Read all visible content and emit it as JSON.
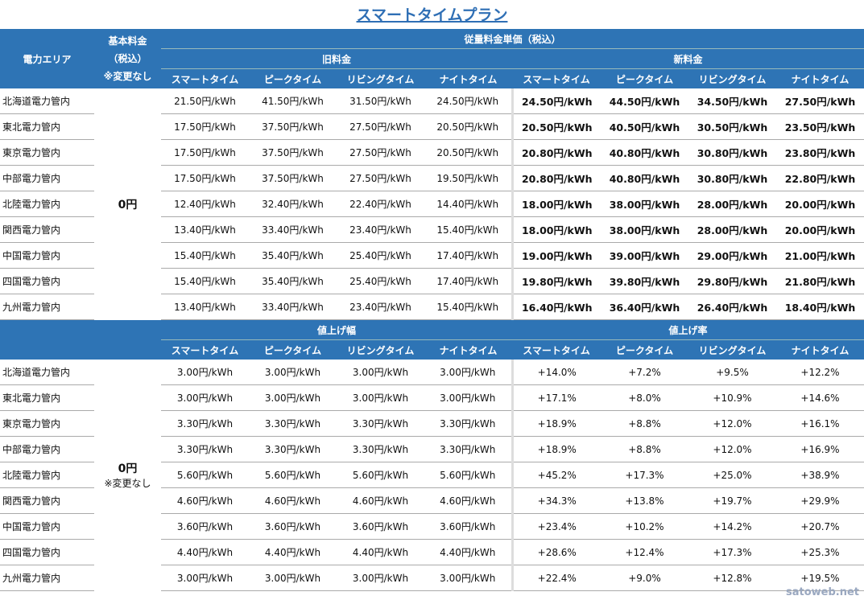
{
  "title": "スマートタイムプラン",
  "header": {
    "area": "電力エリア",
    "base": [
      "基本料金",
      "（税込）",
      "※変更なし"
    ],
    "unit_price": "従量料金単価（税込）",
    "old": "旧料金",
    "new": "新料金",
    "cols": [
      "スマートタイム",
      "ピークタイム",
      "リビングタイム",
      "ナイトタイム"
    ]
  },
  "header2": {
    "increase": "値上げ幅",
    "rate": "値上げ率"
  },
  "base_value": "0円",
  "base_note": "※変更なし",
  "areas": [
    "北海道電力管内",
    "東北電力管内",
    "東京電力管内",
    "中部電力管内",
    "北陸電力管内",
    "関西電力管内",
    "中国電力管内",
    "四国電力管内",
    "九州電力管内"
  ],
  "rows1": [
    [
      "21.50円/kWh",
      "41.50円/kWh",
      "31.50円/kWh",
      "24.50円/kWh",
      "24.50円/kWh",
      "44.50円/kWh",
      "34.50円/kWh",
      "27.50円/kWh"
    ],
    [
      "17.50円/kWh",
      "37.50円/kWh",
      "27.50円/kWh",
      "20.50円/kWh",
      "20.50円/kWh",
      "40.50円/kWh",
      "30.50円/kWh",
      "23.50円/kWh"
    ],
    [
      "17.50円/kWh",
      "37.50円/kWh",
      "27.50円/kWh",
      "20.50円/kWh",
      "20.80円/kWh",
      "40.80円/kWh",
      "30.80円/kWh",
      "23.80円/kWh"
    ],
    [
      "17.50円/kWh",
      "37.50円/kWh",
      "27.50円/kWh",
      "19.50円/kWh",
      "20.80円/kWh",
      "40.80円/kWh",
      "30.80円/kWh",
      "22.80円/kWh"
    ],
    [
      "12.40円/kWh",
      "32.40円/kWh",
      "22.40円/kWh",
      "14.40円/kWh",
      "18.00円/kWh",
      "38.00円/kWh",
      "28.00円/kWh",
      "20.00円/kWh"
    ],
    [
      "13.40円/kWh",
      "33.40円/kWh",
      "23.40円/kWh",
      "15.40円/kWh",
      "18.00円/kWh",
      "38.00円/kWh",
      "28.00円/kWh",
      "20.00円/kWh"
    ],
    [
      "15.40円/kWh",
      "35.40円/kWh",
      "25.40円/kWh",
      "17.40円/kWh",
      "19.00円/kWh",
      "39.00円/kWh",
      "29.00円/kWh",
      "21.00円/kWh"
    ],
    [
      "15.40円/kWh",
      "35.40円/kWh",
      "25.40円/kWh",
      "17.40円/kWh",
      "19.80円/kWh",
      "39.80円/kWh",
      "29.80円/kWh",
      "21.80円/kWh"
    ],
    [
      "13.40円/kWh",
      "33.40円/kWh",
      "23.40円/kWh",
      "15.40円/kWh",
      "16.40円/kWh",
      "36.40円/kWh",
      "26.40円/kWh",
      "18.40円/kWh"
    ]
  ],
  "rows2": [
    [
      "3.00円/kWh",
      "3.00円/kWh",
      "3.00円/kWh",
      "3.00円/kWh",
      "+14.0%",
      "+7.2%",
      "+9.5%",
      "+12.2%"
    ],
    [
      "3.00円/kWh",
      "3.00円/kWh",
      "3.00円/kWh",
      "3.00円/kWh",
      "+17.1%",
      "+8.0%",
      "+10.9%",
      "+14.6%"
    ],
    [
      "3.30円/kWh",
      "3.30円/kWh",
      "3.30円/kWh",
      "3.30円/kWh",
      "+18.9%",
      "+8.8%",
      "+12.0%",
      "+16.1%"
    ],
    [
      "3.30円/kWh",
      "3.30円/kWh",
      "3.30円/kWh",
      "3.30円/kWh",
      "+18.9%",
      "+8.8%",
      "+12.0%",
      "+16.9%"
    ],
    [
      "5.60円/kWh",
      "5.60円/kWh",
      "5.60円/kWh",
      "5.60円/kWh",
      "+45.2%",
      "+17.3%",
      "+25.0%",
      "+38.9%"
    ],
    [
      "4.60円/kWh",
      "4.60円/kWh",
      "4.60円/kWh",
      "4.60円/kWh",
      "+34.3%",
      "+13.8%",
      "+19.7%",
      "+29.9%"
    ],
    [
      "3.60円/kWh",
      "3.60円/kWh",
      "3.60円/kWh",
      "3.60円/kWh",
      "+23.4%",
      "+10.2%",
      "+14.2%",
      "+20.7%"
    ],
    [
      "4.40円/kWh",
      "4.40円/kWh",
      "4.40円/kWh",
      "4.40円/kWh",
      "+28.6%",
      "+12.4%",
      "+17.3%",
      "+25.3%"
    ],
    [
      "3.00円/kWh",
      "3.00円/kWh",
      "3.00円/kWh",
      "3.00円/kWh",
      "+22.4%",
      "+9.0%",
      "+12.8%",
      "+19.5%"
    ]
  ],
  "watermark": "satoweb.net",
  "colors": {
    "header": "#2e74b5",
    "title": "#2f6fb5"
  }
}
